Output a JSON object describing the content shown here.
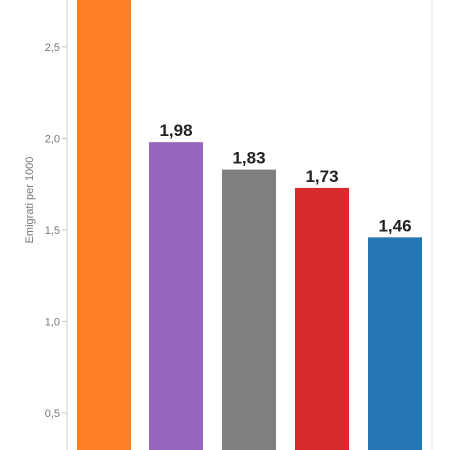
{
  "chart_data": {
    "type": "bar",
    "ylabel": "Emigrati per 1000",
    "ylim": [
      0.3,
      2.8
    ],
    "yticks": [
      0.5,
      1.0,
      1.5,
      2.0,
      2.5
    ],
    "ytick_labels": [
      "0,5",
      "1,0",
      "1,5",
      "2,0",
      "2,5"
    ],
    "grid": false,
    "values": [
      2.8,
      1.98,
      1.83,
      1.73,
      1.46
    ],
    "data_labels": [
      "",
      "1,98",
      "1,83",
      "1,73",
      "1,46"
    ],
    "colors": [
      "#fd7f23",
      "#9467bc",
      "#7f7f7f",
      "#d62a2d",
      "#2677b5"
    ]
  }
}
